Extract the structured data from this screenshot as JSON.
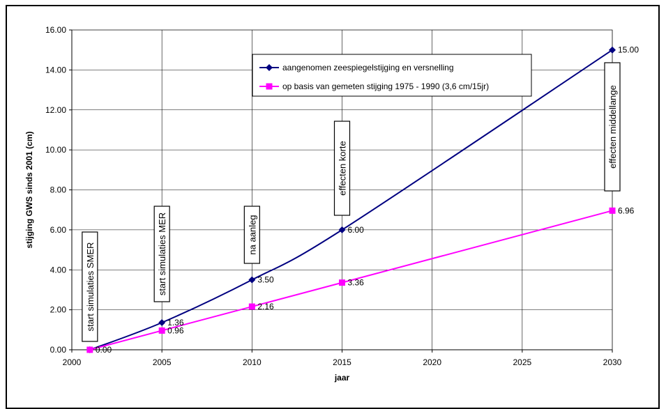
{
  "chart_data": {
    "type": "line",
    "title": "",
    "xlabel": "jaar",
    "ylabel": "stijging GWS sinds 2001 (cm)",
    "xlim": [
      2000,
      2030
    ],
    "ylim": [
      0,
      16
    ],
    "x_ticks": [
      "2000",
      "2005",
      "2010",
      "2015",
      "2020",
      "2025",
      "2030"
    ],
    "y_ticks": [
      "0.00",
      "2.00",
      "4.00",
      "6.00",
      "8.00",
      "10.00",
      "12.00",
      "14.00",
      "16.00"
    ],
    "grid": true,
    "legend_position": "top-right",
    "series": [
      {
        "name": "aangenomen zeespiegelstijging en versnelling",
        "color": "#000080",
        "marker": "diamond",
        "points": [
          {
            "x": 2001,
            "y": 0.0,
            "label": "0.00"
          },
          {
            "x": 2005,
            "y": 1.36,
            "label": "1.36"
          },
          {
            "x": 2010,
            "y": 3.5,
            "label": "3.50"
          },
          {
            "x": 2015,
            "y": 6.0,
            "label": "6.00"
          },
          {
            "x": 2030,
            "y": 15.0,
            "label": "15.00"
          }
        ]
      },
      {
        "name": "op basis van gemeten stijging 1975 - 1990 (3,6 cm/15jr)",
        "color": "#ff00ff",
        "marker": "square",
        "points": [
          {
            "x": 2001,
            "y": 0.0,
            "label": ""
          },
          {
            "x": 2005,
            "y": 0.96,
            "label": "0.96"
          },
          {
            "x": 2010,
            "y": 2.16,
            "label": "2.16"
          },
          {
            "x": 2015,
            "y": 3.36,
            "label": "3.36"
          },
          {
            "x": 2030,
            "y": 6.96,
            "label": "6.96"
          }
        ]
      }
    ],
    "annotations": [
      {
        "text": "start simulaties SMER",
        "x": 2001
      },
      {
        "text": "start simulaties MER",
        "x": 2005
      },
      {
        "text": "na aanleg",
        "x": 2010
      },
      {
        "text": "effecten korte",
        "x": 2015
      },
      {
        "text": "effecten middellange",
        "x": 2030
      }
    ]
  }
}
